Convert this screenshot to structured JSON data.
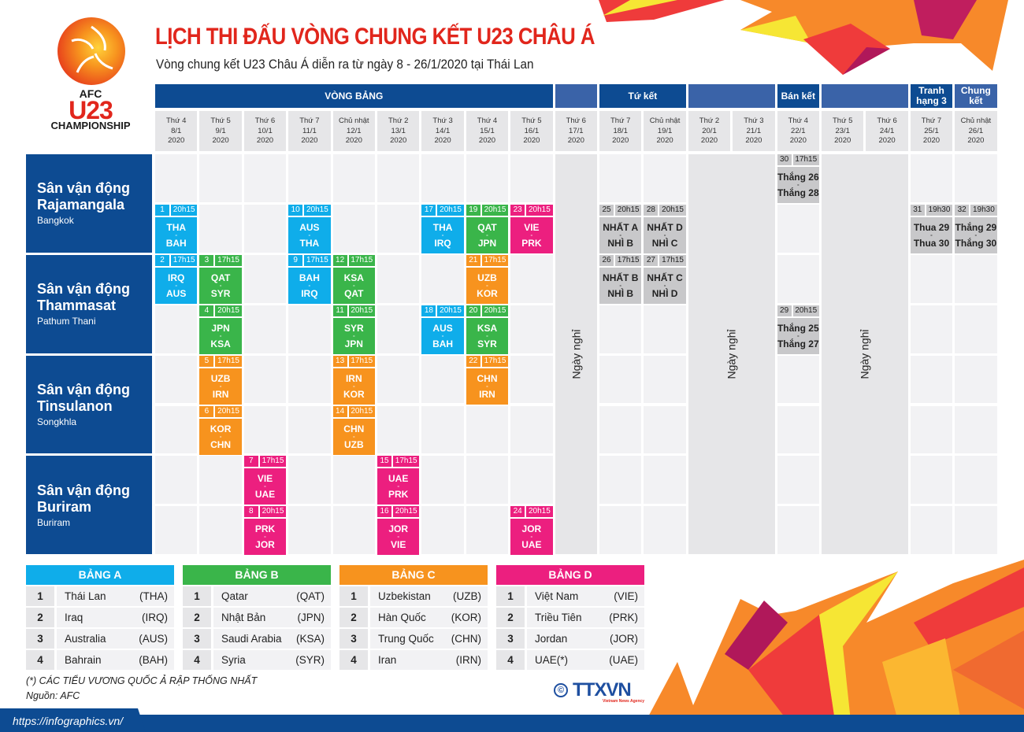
{
  "header": {
    "title": "LỊCH THI ĐẤU VÒNG CHUNG KẾT U23 CHÂU Á",
    "subtitle": "Vòng chung kết U23 Châu Á diễn ra từ ngày 8 - 26/1/2020 tại Thái Lan"
  },
  "logo": {
    "afc": "AFC",
    "u23": "U23",
    "championship": "CHAMPIONSHIP"
  },
  "colors": {
    "group_a": "#0fadea",
    "group_b": "#3ab54a",
    "group_c": "#f7931e",
    "group_d": "#ec1f7f",
    "knockout": "#c8c8ca",
    "venue_blue": "#0d4b92",
    "title_red": "#e1261c"
  },
  "phases": [
    {
      "label": "VÒNG BẢNG",
      "start": 0,
      "span": 9,
      "style": "dark"
    },
    {
      "label": "",
      "start": 9,
      "span": 1,
      "style": "light"
    },
    {
      "label": "Tứ kết",
      "start": 10,
      "span": 2,
      "style": "dark"
    },
    {
      "label": "",
      "start": 12,
      "span": 2,
      "style": "light"
    },
    {
      "label": "Bán kết",
      "start": 14,
      "span": 1,
      "style": "dark"
    },
    {
      "label": "",
      "start": 15,
      "span": 2,
      "style": "light"
    },
    {
      "label": "Tranh hạng 3",
      "start": 17,
      "span": 1,
      "style": "dark"
    },
    {
      "label": "Chung kết",
      "start": 18,
      "span": 1,
      "style": "light"
    }
  ],
  "days": [
    {
      "weekday": "Thứ 4",
      "date": "8/1",
      "year": "2020"
    },
    {
      "weekday": "Thứ 5",
      "date": "9/1",
      "year": "2020"
    },
    {
      "weekday": "Thứ 6",
      "date": "10/1",
      "year": "2020"
    },
    {
      "weekday": "Thứ 7",
      "date": "11/1",
      "year": "2020"
    },
    {
      "weekday": "Chủ nhật",
      "date": "12/1",
      "year": "2020"
    },
    {
      "weekday": "Thứ 2",
      "date": "13/1",
      "year": "2020"
    },
    {
      "weekday": "Thứ 3",
      "date": "14/1",
      "year": "2020"
    },
    {
      "weekday": "Thứ 4",
      "date": "15/1",
      "year": "2020"
    },
    {
      "weekday": "Thứ 5",
      "date": "16/1",
      "year": "2020"
    },
    {
      "weekday": "Thứ 6",
      "date": "17/1",
      "year": "2020"
    },
    {
      "weekday": "Thứ 7",
      "date": "18/1",
      "year": "2020"
    },
    {
      "weekday": "Chủ nhật",
      "date": "19/1",
      "year": "2020"
    },
    {
      "weekday": "Thứ 2",
      "date": "20/1",
      "year": "2020"
    },
    {
      "weekday": "Thứ 3",
      "date": "21/1",
      "year": "2020"
    },
    {
      "weekday": "Thứ 4",
      "date": "22/1",
      "year": "2020"
    },
    {
      "weekday": "Thứ 5",
      "date": "23/1",
      "year": "2020"
    },
    {
      "weekday": "Thứ 6",
      "date": "24/1",
      "year": "2020"
    },
    {
      "weekday": "Thứ 7",
      "date": "25/1",
      "year": "2020"
    },
    {
      "weekday": "Chủ nhật",
      "date": "26/1",
      "year": "2020"
    }
  ],
  "venues": [
    {
      "name_line1": "Sân vận động",
      "name_line2": "Rajamangala",
      "city": "Bangkok"
    },
    {
      "name_line1": "Sân vận động",
      "name_line2": "Thammasat",
      "city": "Pathum Thani"
    },
    {
      "name_line1": "Sân vận động",
      "name_line2": "Tinsulanon",
      "city": "Songkhla"
    },
    {
      "name_line1": "Sân vận động",
      "name_line2": "Buriram",
      "city": "Buriram"
    }
  ],
  "rest_days": [
    {
      "label": "Ngày nghỉ",
      "col": 9,
      "span": 1
    },
    {
      "label": "Ngày nghỉ",
      "col": 12,
      "span": 2
    },
    {
      "label": "Ngày nghỉ",
      "col": 15,
      "span": 2
    }
  ],
  "matches": [
    {
      "no": "1",
      "time": "20h15",
      "home": "THA",
      "away": "BAH",
      "col": 0,
      "row": 1,
      "group": "a"
    },
    {
      "no": "2",
      "time": "17h15",
      "home": "IRQ",
      "away": "AUS",
      "col": 0,
      "row": 2,
      "group": "a"
    },
    {
      "no": "3",
      "time": "17h15",
      "home": "QAT",
      "away": "SYR",
      "col": 1,
      "row": 2,
      "group": "b"
    },
    {
      "no": "4",
      "time": "20h15",
      "home": "JPN",
      "away": "KSA",
      "col": 1,
      "row": 3,
      "group": "b"
    },
    {
      "no": "5",
      "time": "17h15",
      "home": "UZB",
      "away": "IRN",
      "col": 1,
      "row": 4,
      "group": "c"
    },
    {
      "no": "6",
      "time": "20h15",
      "home": "KOR",
      "away": "CHN",
      "col": 1,
      "row": 5,
      "group": "c"
    },
    {
      "no": "7",
      "time": "17h15",
      "home": "VIE",
      "away": "UAE",
      "col": 2,
      "row": 6,
      "group": "d"
    },
    {
      "no": "8",
      "time": "20h15",
      "home": "PRK",
      "away": "JOR",
      "col": 2,
      "row": 7,
      "group": "d"
    },
    {
      "no": "9",
      "time": "17h15",
      "home": "BAH",
      "away": "IRQ",
      "col": 3,
      "row": 2,
      "group": "a"
    },
    {
      "no": "10",
      "time": "20h15",
      "home": "AUS",
      "away": "THA",
      "col": 3,
      "row": 1,
      "group": "a"
    },
    {
      "no": "11",
      "time": "20h15",
      "home": "SYR",
      "away": "JPN",
      "col": 4,
      "row": 3,
      "group": "b"
    },
    {
      "no": "12",
      "time": "17h15",
      "home": "KSA",
      "away": "QAT",
      "col": 4,
      "row": 2,
      "group": "b"
    },
    {
      "no": "13",
      "time": "17h15",
      "home": "IRN",
      "away": "KOR",
      "col": 4,
      "row": 4,
      "group": "c"
    },
    {
      "no": "14",
      "time": "20h15",
      "home": "CHN",
      "away": "UZB",
      "col": 4,
      "row": 5,
      "group": "c"
    },
    {
      "no": "15",
      "time": "17h15",
      "home": "UAE",
      "away": "PRK",
      "col": 5,
      "row": 6,
      "group": "d"
    },
    {
      "no": "16",
      "time": "20h15",
      "home": "JOR",
      "away": "VIE",
      "col": 5,
      "row": 7,
      "group": "d"
    },
    {
      "no": "17",
      "time": "20h15",
      "home": "THA",
      "away": "IRQ",
      "col": 6,
      "row": 1,
      "group": "a"
    },
    {
      "no": "18",
      "time": "20h15",
      "home": "AUS",
      "away": "BAH",
      "col": 6,
      "row": 3,
      "group": "a"
    },
    {
      "no": "19",
      "time": "20h15",
      "home": "QAT",
      "away": "JPN",
      "col": 7,
      "row": 1,
      "group": "b"
    },
    {
      "no": "20",
      "time": "20h15",
      "home": "KSA",
      "away": "SYR",
      "col": 7,
      "row": 3,
      "group": "b"
    },
    {
      "no": "21",
      "time": "17h15",
      "home": "UZB",
      "away": "KOR",
      "col": 7,
      "row": 2,
      "group": "c"
    },
    {
      "no": "22",
      "time": "17h15",
      "home": "CHN",
      "away": "IRN",
      "col": 7,
      "row": 4,
      "group": "c"
    },
    {
      "no": "23",
      "time": "20h15",
      "home": "VIE",
      "away": "PRK",
      "col": 8,
      "row": 1,
      "group": "d"
    },
    {
      "no": "24",
      "time": "20h15",
      "home": "JOR",
      "away": "UAE",
      "col": 8,
      "row": 7,
      "group": "d"
    },
    {
      "no": "25",
      "time": "20h15",
      "home": "NHẤT A",
      "away": "NHÌ B",
      "col": 10,
      "row": 1,
      "group": "ko"
    },
    {
      "no": "26",
      "time": "17h15",
      "home": "NHẤT B",
      "away": "NHÌ B",
      "col": 10,
      "row": 2,
      "group": "ko"
    },
    {
      "no": "27",
      "time": "17h15",
      "home": "NHẤT C",
      "away": "NHÌ D",
      "col": 11,
      "row": 2,
      "group": "ko"
    },
    {
      "no": "28",
      "time": "20h15",
      "home": "NHẤT D",
      "away": "NHÌ C",
      "col": 11,
      "row": 1,
      "group": "ko"
    },
    {
      "no": "29",
      "time": "20h15",
      "home": "Thắng 25",
      "away": "Thắng 27",
      "col": 14,
      "row": 3,
      "group": "ko"
    },
    {
      "no": "30",
      "time": "17h15",
      "home": "Thắng 26",
      "away": "Thắng 28",
      "col": 14,
      "row": 0,
      "group": "ko"
    },
    {
      "no": "31",
      "time": "19h30",
      "home": "Thua 29",
      "away": "Thua 30",
      "col": 17,
      "row": 1,
      "group": "ko"
    },
    {
      "no": "32",
      "time": "19h30",
      "home": "Thắng 29",
      "away": "Thắng 30",
      "col": 18,
      "row": 1,
      "group": "ko"
    }
  ],
  "groups": [
    {
      "title": "BẢNG A",
      "key": "a",
      "teams": [
        {
          "rank": "1",
          "name": "Thái Lan",
          "code": "(THA)"
        },
        {
          "rank": "2",
          "name": "Iraq",
          "code": "(IRQ)"
        },
        {
          "rank": "3",
          "name": "Australia",
          "code": "(AUS)"
        },
        {
          "rank": "4",
          "name": "Bahrain",
          "code": "(BAH)"
        }
      ]
    },
    {
      "title": "BẢNG B",
      "key": "b",
      "teams": [
        {
          "rank": "1",
          "name": "Qatar",
          "code": "(QAT)"
        },
        {
          "rank": "2",
          "name": "Nhật Bản",
          "code": "(JPN)"
        },
        {
          "rank": "3",
          "name": "Saudi Arabia",
          "code": "(KSA)"
        },
        {
          "rank": "4",
          "name": "Syria",
          "code": "(SYR)"
        }
      ]
    },
    {
      "title": "BẢNG C",
      "key": "c",
      "teams": [
        {
          "rank": "1",
          "name": "Uzbekistan",
          "code": "(UZB)"
        },
        {
          "rank": "2",
          "name": "Hàn Quốc",
          "code": "(KOR)"
        },
        {
          "rank": "3",
          "name": "Trung Quốc",
          "code": "(CHN)"
        },
        {
          "rank": "4",
          "name": "Iran",
          "code": "(IRN)"
        }
      ]
    },
    {
      "title": "BẢNG D",
      "key": "d",
      "teams": [
        {
          "rank": "1",
          "name": "Việt Nam",
          "code": "(VIE)"
        },
        {
          "rank": "2",
          "name": "Triều Tiên",
          "code": "(PRK)"
        },
        {
          "rank": "3",
          "name": "Jordan",
          "code": "(JOR)"
        },
        {
          "rank": "4",
          "name": "UAE(*)",
          "code": "(UAE)"
        }
      ]
    }
  ],
  "footnote": {
    "note": "(*) CÁC TIỂU VƯƠNG QUỐC Ả RẬP THỐNG NHẤT",
    "source": "Nguồn: AFC"
  },
  "footer": {
    "url": "https://infographics.vn/"
  },
  "credit": {
    "symbol": "©",
    "agency": "TTXVN",
    "agency_sub": "Vietnam News Agency"
  }
}
